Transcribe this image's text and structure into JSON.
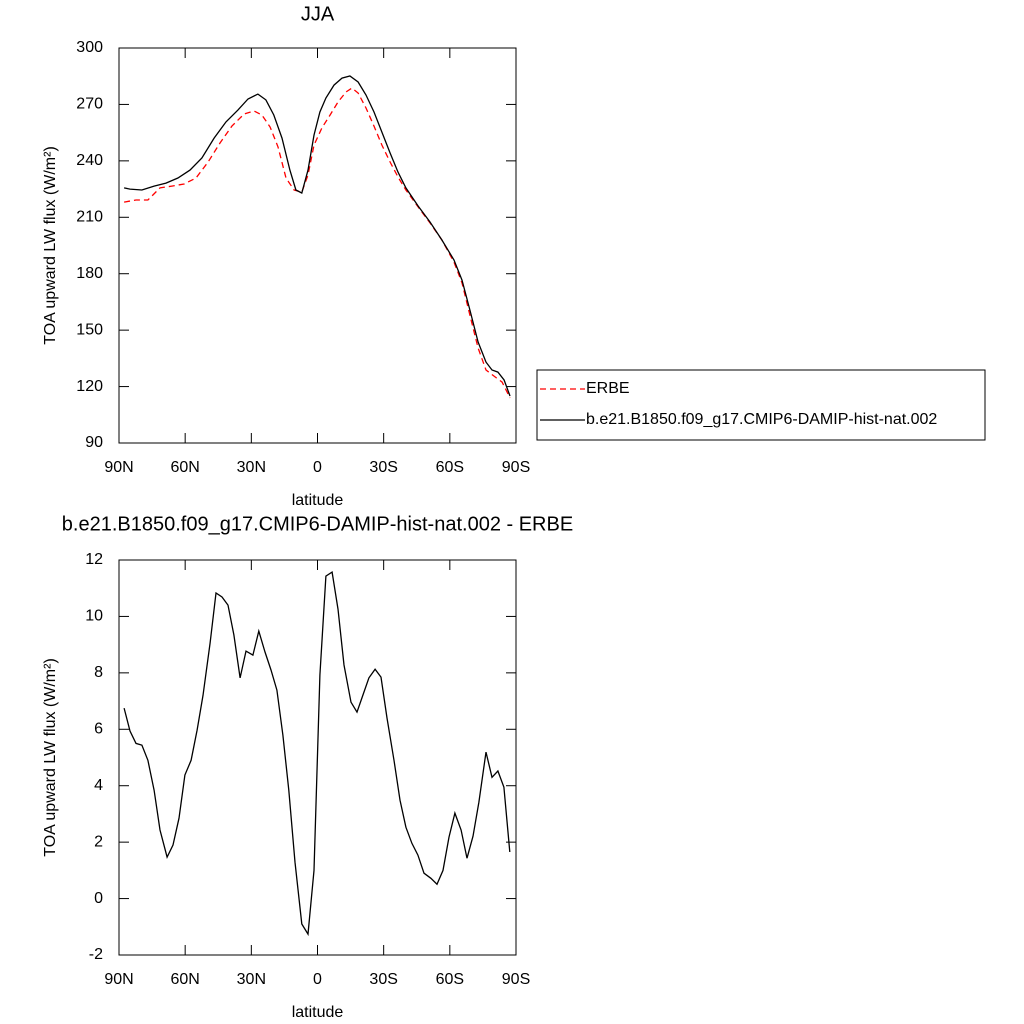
{
  "chart_data": [
    {
      "type": "line",
      "title": "JJA",
      "x_label": "latitude",
      "y_label": "TOA upward LW flux (W/m²)",
      "xlim": [
        90,
        -90
      ],
      "ylim": [
        90,
        300
      ],
      "xticks": [
        {
          "value": 90,
          "label": "90N"
        },
        {
          "value": 60,
          "label": "60N"
        },
        {
          "value": 30,
          "label": "30N"
        },
        0,
        {
          "value": -30,
          "label": "30S"
        },
        {
          "value": -60,
          "label": "60S"
        },
        {
          "value": -90,
          "label": "90S"
        }
      ],
      "yticks": [
        90,
        120,
        150,
        180,
        210,
        240,
        270,
        300
      ],
      "legend": "right",
      "series": [
        {
          "name": "ERBE",
          "color": "#ff0000",
          "dash": "dashed",
          "x": [
            87.7,
            82.3,
            76.9,
            71.4,
            66,
            60.5,
            55.1,
            49.6,
            44.2,
            38.8,
            33.3,
            28.8,
            25.2,
            21.5,
            17.9,
            14.3,
            10.6,
            7.1,
            4.3,
            1.6,
            -2,
            -5.7,
            -9.3,
            -12.9,
            -15.6,
            -18.4,
            -22,
            -25.6,
            -29.2,
            -32.9,
            -36.5,
            -40.1,
            -45.6,
            -51,
            -56.4,
            -61.9,
            -65.5,
            -69.1,
            -72.8,
            -76.4,
            -80,
            -83.7,
            -87.3
          ],
          "values": [
            218.1,
            219.2,
            219.2,
            225.6,
            226.6,
            227.7,
            230.9,
            239.4,
            249.5,
            258.5,
            264.9,
            266.5,
            264.4,
            258,
            247.4,
            230.9,
            224.5,
            223.4,
            232.5,
            248.4,
            257.5,
            264.4,
            271.3,
            276.6,
            278.7,
            276.1,
            268.1,
            258.5,
            248.4,
            239.4,
            231.4,
            224.5,
            215.5,
            207,
            197.9,
            186.2,
            175.1,
            158,
            140.5,
            128.8,
            125.6,
            122.4,
            114
          ]
        },
        {
          "name": "b.e21.B1850.f09_g17.CMIP6-DAMIP-hist-nat.002",
          "color": "#000000",
          "dash": "solid",
          "x": [
            87.7,
            85,
            79.6,
            74.1,
            68.7,
            63.3,
            57.8,
            52.4,
            46.9,
            41.5,
            36.1,
            31.5,
            27,
            23.4,
            19.8,
            16.1,
            12.5,
            9.8,
            7.1,
            4.3,
            1.6,
            -1.1,
            -3.8,
            -7.5,
            -11.1,
            -14.7,
            -18.4,
            -22,
            -25.6,
            -29.2,
            -32.9,
            -36.5,
            -40.1,
            -45.6,
            -51,
            -56.4,
            -61.9,
            -65.5,
            -69.1,
            -72.8,
            -76.4,
            -79.1,
            -81.8,
            -84.6,
            -87.3
          ],
          "values": [
            225.6,
            225,
            224.5,
            226.6,
            228.2,
            230.9,
            235.1,
            241.5,
            252.1,
            260.7,
            267,
            272.9,
            275.5,
            272.4,
            264.4,
            252.1,
            235.1,
            224.5,
            222.9,
            235.1,
            253.7,
            266,
            273.4,
            280.3,
            284,
            285.1,
            281.9,
            275,
            266,
            255.3,
            244.2,
            234,
            225.6,
            216,
            207.5,
            197.9,
            187.3,
            176.6,
            160.7,
            143.7,
            133,
            128.8,
            127.7,
            123.5,
            115
          ]
        }
      ]
    },
    {
      "type": "line",
      "title": "b.e21.B1850.f09_g17.CMIP6-DAMIP-hist-nat.002 - ERBE",
      "x_label": "latitude",
      "y_label": "TOA upward LW flux (W/m²)",
      "xlim": [
        90,
        -90
      ],
      "ylim": [
        -2,
        12
      ],
      "xticks": [
        {
          "value": 90,
          "label": "90N"
        },
        {
          "value": 60,
          "label": "60N"
        },
        {
          "value": 30,
          "label": "30N"
        },
        0,
        {
          "value": -30,
          "label": "30S"
        },
        {
          "value": -60,
          "label": "60S"
        },
        {
          "value": -90,
          "label": "90S"
        }
      ],
      "yticks": [
        -2,
        0,
        2,
        4,
        6,
        8,
        10,
        12
      ],
      "color": "#000000",
      "x": [
        87.7,
        85,
        82.3,
        79.6,
        76.9,
        74.1,
        71.4,
        68.2,
        65.5,
        62.8,
        60.1,
        57.3,
        54.6,
        51.9,
        48.7,
        46,
        43.3,
        40.6,
        37.9,
        35.1,
        32.4,
        29.3,
        26.6,
        23.8,
        21.1,
        18.4,
        15.7,
        13,
        10.2,
        7.1,
        4.3,
        1.6,
        -1.1,
        -3.8,
        -6.6,
        -9.3,
        -12,
        -15.2,
        -17.9,
        -20.6,
        -23.3,
        -26.1,
        -28.8,
        -31.5,
        -34.7,
        -37.4,
        -40.1,
        -42.8,
        -45.5,
        -48.3,
        -51.4,
        -54.2,
        -56.9,
        -59.6,
        -62.3,
        -65.1,
        -67.8,
        -70.5,
        -73.2,
        -76.4,
        -79.1,
        -81.8,
        -84.5,
        -87.2
      ],
      "values": [
        6.75,
        5.94,
        5.5,
        5.44,
        4.9,
        3.84,
        2.43,
        1.47,
        1.9,
        2.85,
        4.38,
        4.9,
        5.97,
        7.2,
        9.06,
        10.83,
        10.69,
        10.4,
        9.34,
        7.82,
        8.77,
        8.63,
        9.48,
        8.74,
        8.1,
        7.39,
        5.79,
        3.84,
        1.29,
        -0.9,
        -1.26,
        1.0,
        7.92,
        11.43,
        11.57,
        10.26,
        8.28,
        6.96,
        6.61,
        7.21,
        7.82,
        8.13,
        7.85,
        6.4,
        4.9,
        3.49,
        2.53,
        1.96,
        1.54,
        0.9,
        0.72,
        0.51,
        1.0,
        2.18,
        3.03,
        2.43,
        1.43,
        2.21,
        3.42,
        5.19,
        4.3,
        4.52,
        3.95,
        1.65
      ]
    }
  ]
}
